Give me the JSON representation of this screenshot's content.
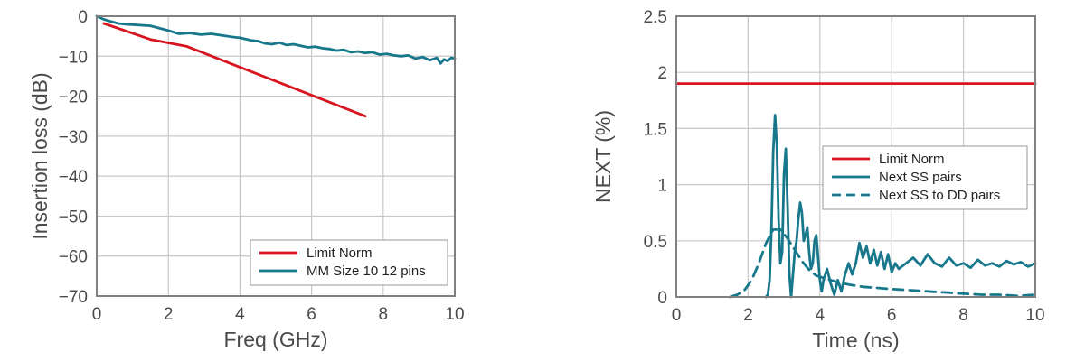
{
  "colors": {
    "limit": "#d7141f",
    "teal": "#17788c",
    "grid": "#c8c8c8",
    "frame": "#808080",
    "text": "#4a4a4a"
  },
  "chart_data": [
    {
      "type": "line",
      "xlabel": "Freq (GHz)",
      "ylabel": "Insertion loss (dB)",
      "xlim": [
        0,
        10
      ],
      "ylim": [
        -70,
        0
      ],
      "xticks": [
        0,
        2,
        4,
        6,
        8,
        10
      ],
      "yticks": [
        0,
        -10,
        -20,
        -30,
        -40,
        -50,
        -60,
        -70
      ],
      "xtick_labels": [
        "0",
        "2",
        "4",
        "6",
        "8",
        "10"
      ],
      "ytick_labels": [
        "0",
        "−10",
        "−20",
        "−30",
        "−40",
        "−50",
        "−60",
        "−70"
      ],
      "grid": true,
      "legend_position": "bottom-right",
      "series": [
        {
          "name": "Limit Norm",
          "color": "#d7141f",
          "dash": false,
          "x": [
            0.2,
            1.5,
            2.5,
            7.5
          ],
          "y": [
            -1.8,
            -5.8,
            -7.5,
            -25
          ]
        },
        {
          "name": "MM Size 10 12 pins",
          "color": "#17788c",
          "dash": false,
          "x": [
            0.0,
            0.2,
            0.4,
            0.6,
            0.8,
            1.0,
            1.5,
            2.0,
            2.3,
            2.6,
            2.9,
            3.2,
            3.5,
            3.8,
            4.0,
            4.3,
            4.5,
            4.7,
            4.9,
            5.1,
            5.3,
            5.5,
            5.7,
            5.9,
            6.1,
            6.3,
            6.5,
            6.7,
            6.9,
            7.1,
            7.3,
            7.5,
            7.7,
            7.9,
            8.1,
            8.3,
            8.5,
            8.7,
            8.9,
            9.1,
            9.3,
            9.5,
            9.6,
            9.7,
            9.8,
            9.9,
            10.0
          ],
          "y": [
            0,
            -0.8,
            -1.3,
            -1.8,
            -2.0,
            -2.1,
            -2.4,
            -3.6,
            -4.4,
            -4.2,
            -4.6,
            -4.4,
            -4.8,
            -5.2,
            -5.4,
            -6.0,
            -6.2,
            -6.8,
            -7.0,
            -6.6,
            -7.2,
            -7.0,
            -7.4,
            -7.8,
            -7.6,
            -8.0,
            -8.2,
            -8.6,
            -8.4,
            -9.0,
            -8.8,
            -9.2,
            -9.0,
            -9.6,
            -9.4,
            -9.8,
            -10.0,
            -9.8,
            -10.6,
            -10.2,
            -11.0,
            -10.4,
            -11.8,
            -10.8,
            -11.2,
            -10.4,
            -10.6
          ]
        }
      ]
    },
    {
      "type": "line",
      "xlabel": "Time (ns)",
      "ylabel": "NEXT (%)",
      "xlim": [
        0,
        10
      ],
      "ylim": [
        0,
        2.5
      ],
      "xticks": [
        0,
        2,
        4,
        6,
        8,
        10
      ],
      "yticks": [
        0,
        0.5,
        1,
        1.5,
        2,
        2.5
      ],
      "xtick_labels": [
        "0",
        "2",
        "4",
        "6",
        "8",
        "10"
      ],
      "ytick_labels": [
        "0",
        "0.5",
        "1",
        "1.5",
        "2",
        "2.5"
      ],
      "grid": true,
      "legend_position": "center-right",
      "series": [
        {
          "name": "Limit Norm",
          "color": "#d7141f",
          "dash": false,
          "x": [
            0,
            10
          ],
          "y": [
            1.9,
            1.9
          ]
        },
        {
          "name": "Next SS pairs",
          "color": "#17788c",
          "dash": false,
          "x": [
            2.5,
            2.55,
            2.6,
            2.65,
            2.7,
            2.75,
            2.8,
            2.85,
            2.9,
            2.95,
            3.0,
            3.05,
            3.1,
            3.15,
            3.2,
            3.25,
            3.3,
            3.35,
            3.4,
            3.45,
            3.5,
            3.55,
            3.6,
            3.65,
            3.7,
            3.75,
            3.8,
            3.85,
            3.9,
            3.95,
            4.0,
            4.05,
            4.1,
            4.2,
            4.3,
            4.4,
            4.5,
            4.6,
            4.7,
            4.8,
            4.9,
            5.0,
            5.1,
            5.2,
            5.3,
            5.4,
            5.5,
            5.6,
            5.7,
            5.8,
            5.9,
            6.0,
            6.1,
            6.2,
            6.4,
            6.6,
            6.8,
            7.0,
            7.2,
            7.4,
            7.6,
            7.8,
            8.0,
            8.2,
            8.4,
            8.6,
            8.8,
            9.0,
            9.2,
            9.4,
            9.6,
            9.8,
            10.0
          ],
          "y": [
            0,
            0.02,
            0.15,
            0.6,
            1.3,
            1.62,
            1.35,
            0.7,
            0.3,
            0.4,
            1.1,
            1.32,
            0.8,
            0.2,
            0.0,
            0.2,
            0.4,
            0.5,
            0.7,
            0.84,
            0.75,
            0.5,
            0.55,
            0.62,
            0.4,
            0.25,
            0.3,
            0.5,
            0.55,
            0.35,
            0.15,
            0.05,
            0.15,
            0.25,
            0.12,
            0.02,
            0.15,
            0.05,
            0.2,
            0.3,
            0.2,
            0.3,
            0.48,
            0.35,
            0.45,
            0.3,
            0.42,
            0.28,
            0.4,
            0.25,
            0.38,
            0.22,
            0.3,
            0.25,
            0.3,
            0.35,
            0.28,
            0.38,
            0.3,
            0.27,
            0.35,
            0.28,
            0.3,
            0.26,
            0.33,
            0.28,
            0.3,
            0.27,
            0.32,
            0.29,
            0.31,
            0.27,
            0.3
          ]
        },
        {
          "name": "Next SS to DD pairs",
          "color": "#17788c",
          "dash": true,
          "x": [
            1.5,
            1.7,
            1.9,
            2.1,
            2.3,
            2.5,
            2.7,
            2.9,
            3.1,
            3.3,
            3.5,
            3.7,
            3.9,
            4.1,
            4.3,
            4.5,
            4.8,
            5.2,
            5.6,
            6.0,
            6.5,
            7.0,
            7.5,
            8.0,
            8.5,
            9.0,
            9.5,
            10.0
          ],
          "y": [
            0.0,
            0.02,
            0.06,
            0.15,
            0.3,
            0.48,
            0.6,
            0.6,
            0.52,
            0.42,
            0.32,
            0.24,
            0.19,
            0.17,
            0.15,
            0.13,
            0.11,
            0.09,
            0.08,
            0.07,
            0.06,
            0.05,
            0.04,
            0.03,
            0.02,
            0.02,
            0.01,
            0.02
          ]
        }
      ]
    }
  ]
}
